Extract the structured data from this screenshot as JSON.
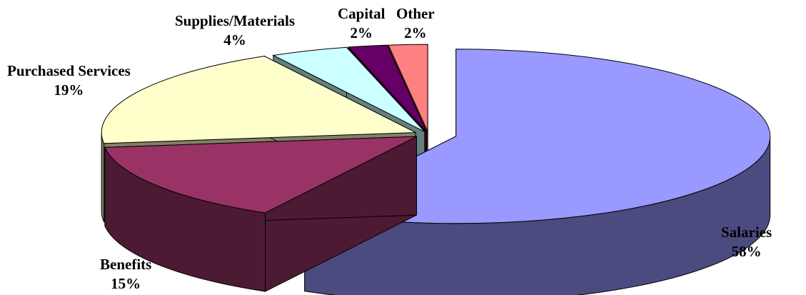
{
  "chart_data": {
    "type": "pie",
    "style": "3d-exploded",
    "title": "",
    "slices": [
      {
        "label": "Salaries",
        "value": 58,
        "value_text": "58%",
        "color": "#9999FF",
        "side_color": "#4B4B80"
      },
      {
        "label": "Benefits",
        "value": 15,
        "value_text": "15%",
        "color": "#993366",
        "side_color": "#4C1A33"
      },
      {
        "label": "Purchased Services",
        "value": 19,
        "value_text": "19%",
        "color": "#FFFFCC",
        "side_color": "#808066"
      },
      {
        "label": "Supplies/Materials",
        "value": 4,
        "value_text": "4%",
        "color": "#CCFFFF",
        "side_color": "#668080"
      },
      {
        "label": "Capital",
        "value": 2,
        "value_text": "2%",
        "color": "#660066",
        "side_color": "#330033"
      },
      {
        "label": "Other",
        "value": 2,
        "value_text": "2%",
        "color": "#FF8080",
        "side_color": "#804040"
      }
    ]
  }
}
